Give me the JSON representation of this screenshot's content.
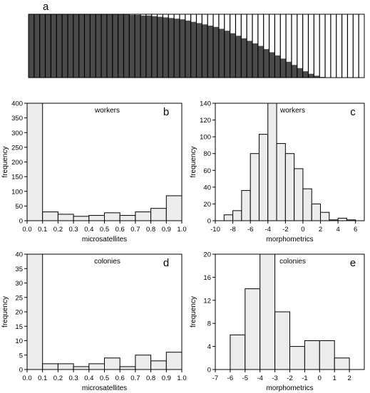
{
  "colors": {
    "bar_fill": "#ececec",
    "structure_dark": "#4a4a4a",
    "structure_light": "#ffffff",
    "outline": "#000000"
  },
  "chart_data": [
    {
      "panel": "a",
      "type": "heatmap",
      "title": "",
      "num_colonies": 60,
      "dark_share": [
        1.0,
        1.0,
        1.0,
        1.0,
        1.0,
        1.0,
        1.0,
        1.0,
        1.0,
        1.0,
        1.0,
        1.0,
        1.0,
        1.0,
        1.0,
        1.0,
        1.0,
        1.0,
        0.99,
        0.99,
        0.98,
        0.98,
        0.97,
        0.96,
        0.95,
        0.94,
        0.93,
        0.92,
        0.9,
        0.88,
        0.86,
        0.84,
        0.82,
        0.8,
        0.77,
        0.74,
        0.7,
        0.66,
        0.62,
        0.58,
        0.54,
        0.5,
        0.45,
        0.4,
        0.35,
        0.3,
        0.25,
        0.2,
        0.15,
        0.1,
        0.06,
        0.03,
        0.01,
        0,
        0,
        0,
        0,
        0,
        0,
        0
      ]
    },
    {
      "panel": "b",
      "type": "bar",
      "title": "workers",
      "xlabel": "microsatellites",
      "ylabel": "frequency",
      "bin_edges": [
        0,
        0.1,
        0.2,
        0.3,
        0.4,
        0.5,
        0.6,
        0.7,
        0.8,
        0.9,
        1.0
      ],
      "values": [
        400,
        30,
        22,
        15,
        18,
        27,
        18,
        30,
        42,
        85
      ],
      "xlim": [
        0,
        1.0
      ],
      "ylim": [
        0,
        400
      ],
      "xticks": [
        "0.0",
        "0.1",
        "0.2",
        "0.3",
        "0.4",
        "0.5",
        "0.6",
        "0.7",
        "0.8",
        "0.9",
        "1.0"
      ],
      "yticks": [
        "0",
        "50",
        "100",
        "150",
        "200",
        "250",
        "300",
        "350",
        "400"
      ]
    },
    {
      "panel": "c",
      "type": "bar",
      "title": "workers",
      "xlabel": "morphometrics",
      "ylabel": "frequency",
      "bin_edges": [
        -9,
        -8,
        -7,
        -6,
        -5,
        -4,
        -3,
        -2,
        -1,
        0,
        1,
        2,
        3,
        4,
        5,
        6
      ],
      "values": [
        7,
        12,
        36,
        80,
        103,
        140,
        92,
        80,
        62,
        38,
        20,
        10,
        1,
        3,
        1
      ],
      "xlim": [
        -10,
        7
      ],
      "ylim": [
        0,
        140
      ],
      "xticks": [
        "-10",
        "-8",
        "-6",
        "-4",
        "-2",
        "0",
        "2",
        "4",
        "6"
      ],
      "yticks": [
        "0",
        "20",
        "40",
        "60",
        "80",
        "100",
        "120",
        "140"
      ]
    },
    {
      "panel": "d",
      "type": "bar",
      "title": "colonies",
      "xlabel": "microsatellites",
      "ylabel": "frequency",
      "bin_edges": [
        0,
        0.1,
        0.2,
        0.3,
        0.4,
        0.5,
        0.6,
        0.7,
        0.8,
        0.9,
        1.0
      ],
      "values": [
        40,
        2,
        2,
        1,
        2,
        4,
        1,
        5,
        3,
        6
      ],
      "xlim": [
        0,
        1.0
      ],
      "ylim": [
        0,
        40
      ],
      "xticks": [
        "0.0",
        "0.1",
        "0.2",
        "0.3",
        "0.4",
        "0.5",
        "0.6",
        "0.7",
        "0.8",
        "0.9",
        "1.0"
      ],
      "yticks": [
        "0",
        "5",
        "10",
        "15",
        "20",
        "25",
        "30",
        "35",
        "40"
      ]
    },
    {
      "panel": "e",
      "type": "bar",
      "title": "colonies",
      "xlabel": "morphometrics",
      "ylabel": "frequency",
      "bin_edges": [
        -6,
        -5,
        -4,
        -3,
        -2,
        -1,
        0,
        1,
        2
      ],
      "values": [
        6,
        14,
        20,
        10,
        4,
        5,
        5,
        2
      ],
      "xlim": [
        -7,
        3
      ],
      "ylim": [
        0,
        20
      ],
      "xticks": [
        "-7",
        "-6",
        "-5",
        "-4",
        "-3",
        "-2",
        "-1",
        "0",
        "1",
        "2"
      ],
      "yticks": [
        "0",
        "4",
        "8",
        "12",
        "16",
        "20"
      ]
    }
  ]
}
